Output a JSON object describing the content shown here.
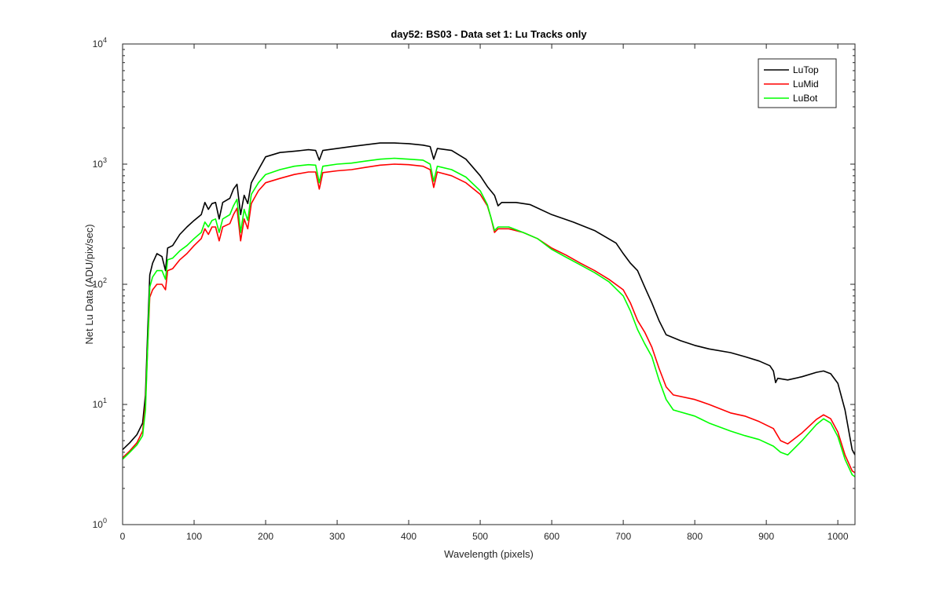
{
  "chart_data": {
    "type": "line",
    "title": "day52: BS03 - Data set 1: Lu Tracks only",
    "xlabel": "Wavelength (pixels)",
    "ylabel": "Net Lu Data (ADU/pix/sec)",
    "xlim": [
      0,
      1024
    ],
    "ylim": [
      1,
      10000
    ],
    "yscale": "log",
    "grid": false,
    "legend_position": "top-right",
    "x_ticks": [
      0,
      100,
      200,
      300,
      400,
      500,
      600,
      700,
      800,
      900,
      1000
    ],
    "y_ticks": [
      {
        "value": 1,
        "base": "10",
        "exp": "0"
      },
      {
        "value": 10,
        "base": "10",
        "exp": "1"
      },
      {
        "value": 100,
        "base": "10",
        "exp": "2"
      },
      {
        "value": 1000,
        "base": "10",
        "exp": "3"
      },
      {
        "value": 10000,
        "base": "10",
        "exp": "4"
      }
    ],
    "series": [
      {
        "name": "LuTop",
        "color": "#000000",
        "points": [
          [
            0,
            4.2
          ],
          [
            10,
            4.8
          ],
          [
            20,
            5.6
          ],
          [
            28,
            7
          ],
          [
            32,
            12
          ],
          [
            35,
            40
          ],
          [
            38,
            120
          ],
          [
            42,
            150
          ],
          [
            48,
            180
          ],
          [
            55,
            170
          ],
          [
            60,
            130
          ],
          [
            63,
            200
          ],
          [
            70,
            210
          ],
          [
            80,
            260
          ],
          [
            90,
            300
          ],
          [
            100,
            340
          ],
          [
            110,
            380
          ],
          [
            115,
            480
          ],
          [
            120,
            420
          ],
          [
            125,
            470
          ],
          [
            130,
            480
          ],
          [
            135,
            350
          ],
          [
            140,
            480
          ],
          [
            150,
            520
          ],
          [
            155,
            620
          ],
          [
            160,
            680
          ],
          [
            165,
            380
          ],
          [
            170,
            550
          ],
          [
            175,
            470
          ],
          [
            180,
            700
          ],
          [
            190,
            900
          ],
          [
            200,
            1150
          ],
          [
            220,
            1250
          ],
          [
            240,
            1280
          ],
          [
            260,
            1320
          ],
          [
            270,
            1300
          ],
          [
            275,
            1080
          ],
          [
            280,
            1300
          ],
          [
            300,
            1350
          ],
          [
            320,
            1400
          ],
          [
            340,
            1450
          ],
          [
            360,
            1500
          ],
          [
            380,
            1500
          ],
          [
            400,
            1480
          ],
          [
            420,
            1440
          ],
          [
            430,
            1400
          ],
          [
            435,
            1100
          ],
          [
            440,
            1350
          ],
          [
            460,
            1300
          ],
          [
            480,
            1100
          ],
          [
            500,
            800
          ],
          [
            510,
            650
          ],
          [
            520,
            550
          ],
          [
            525,
            450
          ],
          [
            530,
            480
          ],
          [
            550,
            480
          ],
          [
            570,
            460
          ],
          [
            600,
            380
          ],
          [
            630,
            330
          ],
          [
            660,
            280
          ],
          [
            690,
            220
          ],
          [
            700,
            180
          ],
          [
            710,
            150
          ],
          [
            720,
            130
          ],
          [
            730,
            95
          ],
          [
            740,
            70
          ],
          [
            750,
            50
          ],
          [
            760,
            38
          ],
          [
            780,
            34
          ],
          [
            800,
            31
          ],
          [
            820,
            29
          ],
          [
            850,
            27
          ],
          [
            870,
            25
          ],
          [
            890,
            23
          ],
          [
            905,
            21
          ],
          [
            910,
            19
          ],
          [
            913,
            15.2
          ],
          [
            916,
            16.5
          ],
          [
            930,
            16
          ],
          [
            950,
            17
          ],
          [
            970,
            18.5
          ],
          [
            980,
            19
          ],
          [
            990,
            18
          ],
          [
            1000,
            15
          ],
          [
            1010,
            9
          ],
          [
            1020,
            4.2
          ],
          [
            1024,
            3.8
          ]
        ]
      },
      {
        "name": "LuMid",
        "color": "#ff0000",
        "points": [
          [
            0,
            3.6
          ],
          [
            10,
            4.1
          ],
          [
            20,
            4.8
          ],
          [
            28,
            6
          ],
          [
            32,
            10
          ],
          [
            35,
            30
          ],
          [
            38,
            78
          ],
          [
            42,
            90
          ],
          [
            48,
            100
          ],
          [
            55,
            100
          ],
          [
            60,
            90
          ],
          [
            63,
            130
          ],
          [
            70,
            135
          ],
          [
            80,
            160
          ],
          [
            90,
            180
          ],
          [
            100,
            210
          ],
          [
            110,
            240
          ],
          [
            115,
            290
          ],
          [
            120,
            260
          ],
          [
            125,
            300
          ],
          [
            130,
            300
          ],
          [
            135,
            230
          ],
          [
            140,
            300
          ],
          [
            150,
            320
          ],
          [
            155,
            380
          ],
          [
            160,
            430
          ],
          [
            165,
            230
          ],
          [
            170,
            350
          ],
          [
            175,
            290
          ],
          [
            180,
            470
          ],
          [
            190,
            600
          ],
          [
            200,
            700
          ],
          [
            220,
            760
          ],
          [
            240,
            820
          ],
          [
            260,
            860
          ],
          [
            270,
            860
          ],
          [
            275,
            620
          ],
          [
            280,
            850
          ],
          [
            300,
            880
          ],
          [
            320,
            900
          ],
          [
            340,
            940
          ],
          [
            360,
            980
          ],
          [
            380,
            1000
          ],
          [
            400,
            990
          ],
          [
            420,
            960
          ],
          [
            430,
            900
          ],
          [
            435,
            640
          ],
          [
            440,
            860
          ],
          [
            460,
            800
          ],
          [
            480,
            700
          ],
          [
            500,
            560
          ],
          [
            510,
            450
          ],
          [
            515,
            360
          ],
          [
            520,
            270
          ],
          [
            525,
            290
          ],
          [
            540,
            290
          ],
          [
            560,
            270
          ],
          [
            580,
            240
          ],
          [
            600,
            200
          ],
          [
            620,
            175
          ],
          [
            640,
            150
          ],
          [
            660,
            130
          ],
          [
            680,
            110
          ],
          [
            700,
            90
          ],
          [
            710,
            70
          ],
          [
            720,
            50
          ],
          [
            730,
            40
          ],
          [
            740,
            30
          ],
          [
            750,
            20
          ],
          [
            760,
            14
          ],
          [
            770,
            12
          ],
          [
            800,
            11
          ],
          [
            820,
            10
          ],
          [
            850,
            8.5
          ],
          [
            870,
            8
          ],
          [
            890,
            7.2
          ],
          [
            910,
            6.3
          ],
          [
            920,
            5
          ],
          [
            930,
            4.7
          ],
          [
            950,
            5.8
          ],
          [
            970,
            7.5
          ],
          [
            980,
            8.2
          ],
          [
            990,
            7.6
          ],
          [
            1000,
            5.9
          ],
          [
            1010,
            3.8
          ],
          [
            1020,
            2.8
          ],
          [
            1024,
            2.7
          ]
        ]
      },
      {
        "name": "LuBot",
        "color": "#00ff00",
        "points": [
          [
            0,
            3.5
          ],
          [
            10,
            4
          ],
          [
            20,
            4.6
          ],
          [
            28,
            5.5
          ],
          [
            32,
            9
          ],
          [
            35,
            30
          ],
          [
            38,
            95
          ],
          [
            42,
            115
          ],
          [
            48,
            130
          ],
          [
            55,
            130
          ],
          [
            60,
            110
          ],
          [
            63,
            160
          ],
          [
            70,
            165
          ],
          [
            80,
            190
          ],
          [
            90,
            210
          ],
          [
            100,
            240
          ],
          [
            110,
            270
          ],
          [
            115,
            330
          ],
          [
            120,
            300
          ],
          [
            125,
            340
          ],
          [
            130,
            350
          ],
          [
            135,
            270
          ],
          [
            140,
            350
          ],
          [
            150,
            380
          ],
          [
            155,
            450
          ],
          [
            160,
            510
          ],
          [
            165,
            270
          ],
          [
            170,
            420
          ],
          [
            175,
            340
          ],
          [
            180,
            560
          ],
          [
            190,
            700
          ],
          [
            200,
            820
          ],
          [
            220,
            900
          ],
          [
            240,
            960
          ],
          [
            260,
            990
          ],
          [
            270,
            980
          ],
          [
            275,
            700
          ],
          [
            280,
            960
          ],
          [
            300,
            1000
          ],
          [
            320,
            1020
          ],
          [
            340,
            1060
          ],
          [
            360,
            1100
          ],
          [
            380,
            1120
          ],
          [
            400,
            1100
          ],
          [
            420,
            1080
          ],
          [
            430,
            1000
          ],
          [
            435,
            720
          ],
          [
            440,
            960
          ],
          [
            460,
            900
          ],
          [
            480,
            780
          ],
          [
            500,
            600
          ],
          [
            510,
            460
          ],
          [
            515,
            360
          ],
          [
            520,
            280
          ],
          [
            525,
            300
          ],
          [
            540,
            300
          ],
          [
            560,
            270
          ],
          [
            580,
            240
          ],
          [
            600,
            195
          ],
          [
            620,
            168
          ],
          [
            640,
            145
          ],
          [
            660,
            125
          ],
          [
            680,
            105
          ],
          [
            700,
            80
          ],
          [
            710,
            60
          ],
          [
            720,
            42
          ],
          [
            730,
            32
          ],
          [
            740,
            25
          ],
          [
            750,
            16
          ],
          [
            760,
            11
          ],
          [
            770,
            9
          ],
          [
            800,
            8
          ],
          [
            820,
            7
          ],
          [
            850,
            6
          ],
          [
            870,
            5.5
          ],
          [
            890,
            5.1
          ],
          [
            910,
            4.5
          ],
          [
            920,
            4
          ],
          [
            930,
            3.8
          ],
          [
            950,
            5
          ],
          [
            970,
            6.8
          ],
          [
            980,
            7.6
          ],
          [
            990,
            7
          ],
          [
            1000,
            5.4
          ],
          [
            1010,
            3.5
          ],
          [
            1020,
            2.6
          ],
          [
            1024,
            2.5
          ]
        ]
      }
    ]
  }
}
